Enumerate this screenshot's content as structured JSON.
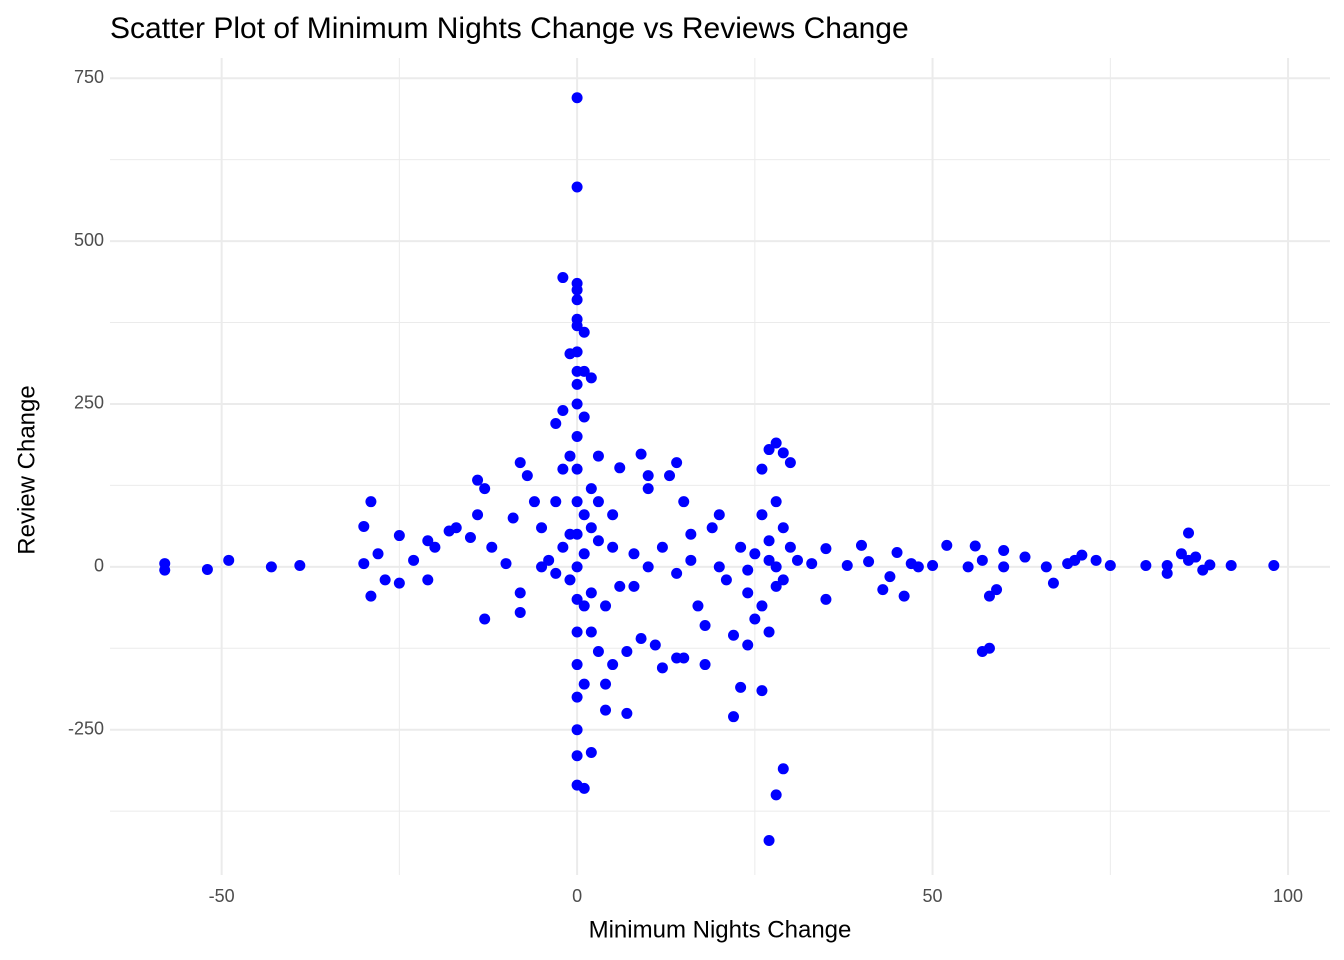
{
  "chart_data": {
    "type": "scatter",
    "title": "Scatter Plot of Minimum Nights Change vs Reviews Change",
    "x_label": "Minimum Nights Change",
    "y_label": "Review Change",
    "color": "#0000ff",
    "xlim": [
      -65.7,
      105.9
    ],
    "ylim": [
      -473,
      781
    ],
    "xticks": [
      -50,
      0,
      50,
      100
    ],
    "yticks": [
      -250,
      0,
      250,
      500,
      750
    ],
    "x_minor_grid": [
      -25,
      25,
      75
    ],
    "y_minor_grid": [
      -375,
      -125,
      125,
      375,
      625
    ],
    "grid": true,
    "x": [
      0,
      0,
      -2,
      0,
      0,
      0,
      0,
      0,
      1,
      -1,
      1,
      0,
      2,
      -58,
      -58,
      -52,
      -49,
      -43,
      -39,
      -30,
      -29,
      -30,
      -29,
      -28,
      -27,
      -25,
      -25,
      -23,
      -21,
      -21,
      -20,
      -18,
      -17,
      -15,
      -14,
      -13,
      -14,
      -13,
      -12,
      -10,
      -9,
      -8,
      -7,
      -8,
      -8,
      -6,
      -5,
      -4,
      -3,
      -2,
      -2,
      -3,
      0,
      0,
      0,
      0,
      0,
      0,
      0,
      0,
      0,
      0,
      0,
      0,
      0,
      1,
      2,
      1,
      2,
      1,
      2,
      3,
      3,
      4,
      4,
      3,
      5,
      6,
      6,
      5,
      7,
      7,
      8,
      9,
      9,
      10,
      10,
      11,
      12,
      13,
      14,
      14,
      15,
      15,
      16,
      17,
      18,
      18,
      19,
      20,
      21,
      22,
      22,
      23,
      24,
      24,
      25,
      26,
      26,
      27,
      27,
      28,
      28,
      29,
      29,
      30,
      28,
      27,
      26,
      27,
      28,
      26,
      29,
      30,
      31,
      33,
      35,
      35,
      38,
      40,
      41,
      43,
      44,
      45,
      46,
      47,
      48,
      50,
      52,
      55,
      56,
      57,
      58,
      58,
      59,
      57,
      60,
      60,
      63,
      66,
      67,
      69,
      70,
      71,
      73,
      75,
      80,
      83,
      83,
      85,
      86,
      86,
      87,
      88,
      89,
      92,
      98,
      -1,
      -1,
      1,
      -2,
      2,
      3,
      4,
      5,
      8,
      10,
      12,
      14,
      16,
      20,
      23,
      24,
      27,
      28,
      29,
      25,
      -5,
      -3,
      1,
      2,
      -1,
      1,
      0,
      0
    ],
    "values": [
      720,
      583,
      444,
      435,
      425,
      410,
      380,
      370,
      360,
      327,
      300,
      300,
      290,
      5,
      -5,
      -4,
      10,
      0,
      2,
      62,
      100,
      5,
      -45,
      20,
      -20,
      48,
      -25,
      10,
      40,
      -20,
      30,
      55,
      60,
      45,
      133,
      120,
      80,
      -80,
      30,
      5,
      75,
      160,
      140,
      -40,
      -70,
      100,
      60,
      10,
      100,
      150,
      240,
      220,
      250,
      200,
      150,
      100,
      50,
      0,
      -50,
      -100,
      -150,
      -200,
      -250,
      -290,
      -335,
      -340,
      -285,
      -180,
      -100,
      20,
      60,
      170,
      100,
      -220,
      -180,
      -130,
      -150,
      152,
      -30,
      30,
      -130,
      -225,
      -30,
      -110,
      173,
      140,
      120,
      -120,
      -155,
      140,
      -140,
      160,
      -140,
      100,
      50,
      -60,
      -150,
      -90,
      60,
      80,
      -20,
      -105,
      -230,
      -185,
      -120,
      -40,
      20,
      150,
      -190,
      180,
      -420,
      -350,
      190,
      -310,
      175,
      160,
      100,
      -100,
      -60,
      40,
      0,
      80,
      -20,
      30,
      10,
      5,
      28,
      -50,
      2,
      33,
      8,
      -35,
      -15,
      22,
      -45,
      5,
      0,
      2,
      33,
      0,
      32,
      -130,
      -125,
      -45,
      -35,
      10,
      25,
      0,
      15,
      0,
      -25,
      5,
      10,
      18,
      10,
      2,
      2,
      -10,
      2,
      20,
      52,
      10,
      15,
      -5,
      3,
      2,
      2,
      50,
      -20,
      80,
      30,
      -40,
      40,
      -60,
      80,
      20,
      0,
      30,
      -10,
      10,
      0,
      30,
      -5,
      10,
      -30,
      60,
      -80,
      0,
      -10,
      -60,
      120,
      170,
      230,
      330,
      280
    ]
  }
}
